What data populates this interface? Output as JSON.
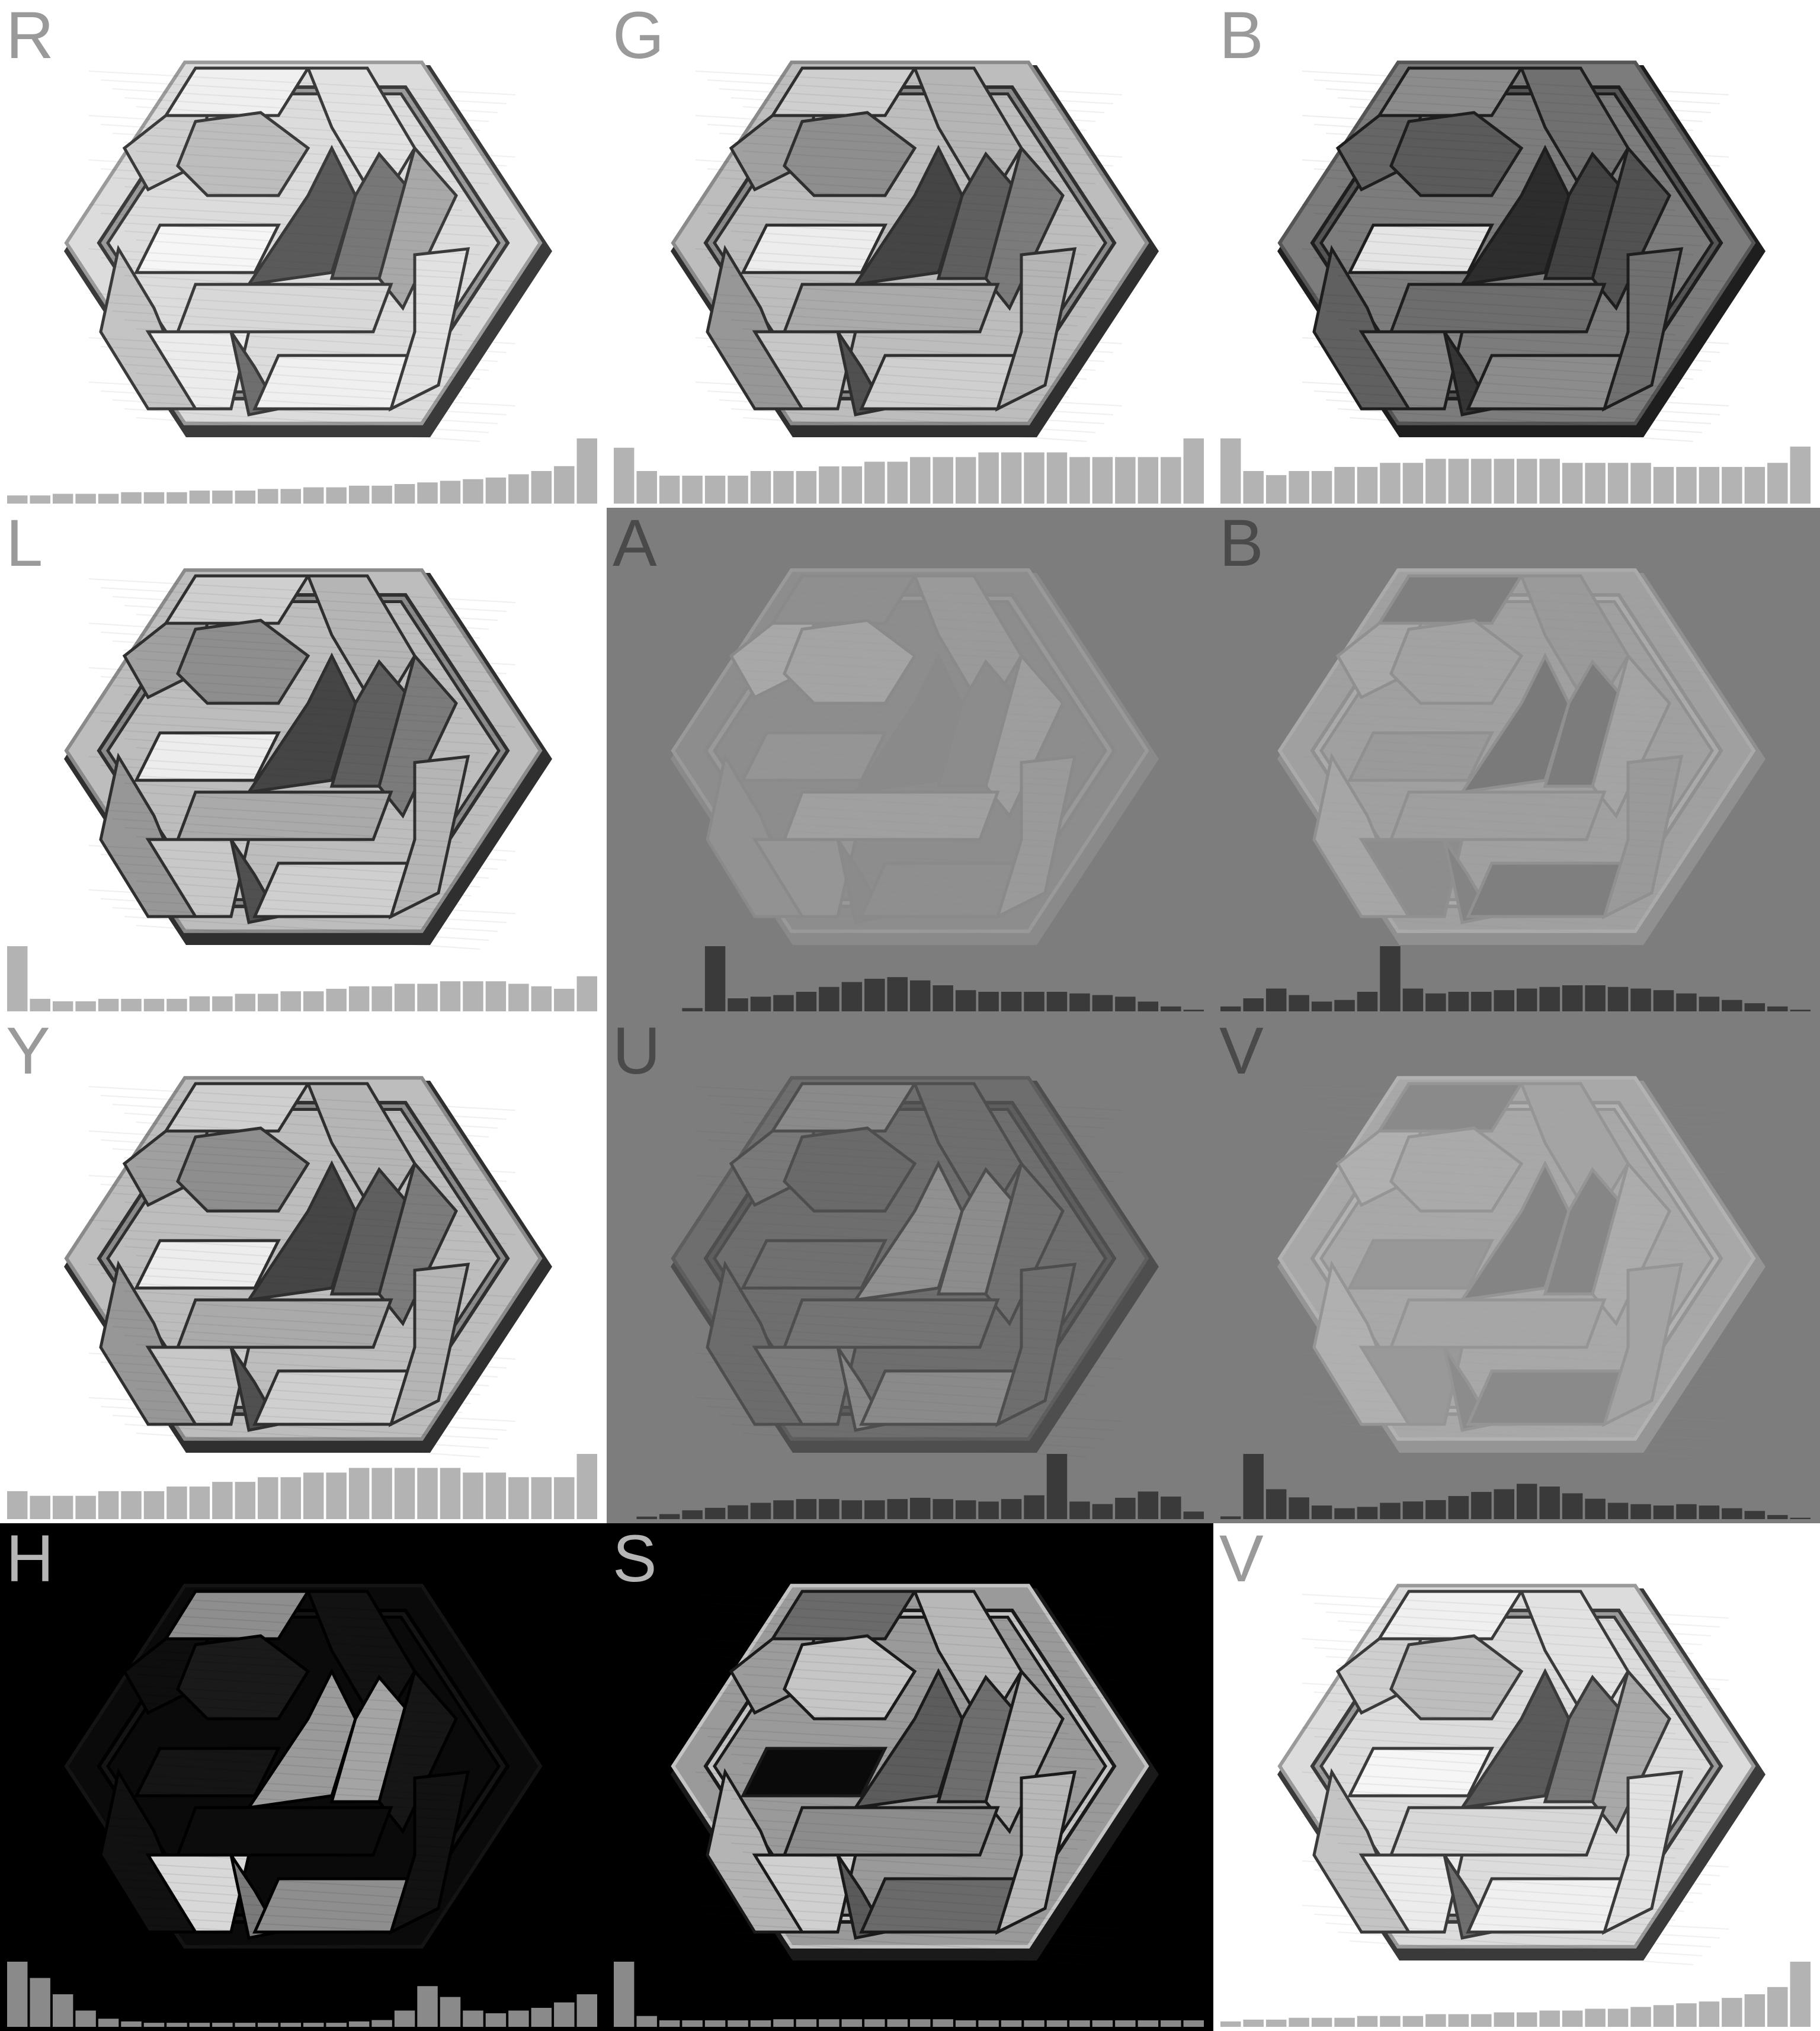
{
  "panels": [
    {
      "id": "R",
      "label": "R",
      "bg": "#ffffff",
      "labelColor": "#9a9a9a",
      "mode": "light",
      "hist": [
        5,
        5,
        6,
        6,
        6,
        7,
        7,
        7,
        8,
        8,
        8,
        9,
        9,
        10,
        10,
        11,
        11,
        12,
        13,
        14,
        15,
        16,
        18,
        20,
        23,
        40
      ]
    },
    {
      "id": "G",
      "label": "G",
      "bg": "#ffffff",
      "labelColor": "#9a9a9a",
      "mode": "mid",
      "hist": [
        12,
        7,
        6,
        6,
        6,
        6,
        7,
        7,
        7,
        8,
        8,
        9,
        9,
        10,
        10,
        10,
        11,
        11,
        11,
        11,
        10,
        10,
        10,
        10,
        10,
        14
      ]
    },
    {
      "id": "B",
      "label": "B",
      "bg": "#ffffff",
      "labelColor": "#9a9a9a",
      "mode": "dark",
      "hist": [
        16,
        8,
        7,
        8,
        8,
        9,
        9,
        10,
        10,
        11,
        11,
        11,
        11,
        11,
        11,
        10,
        10,
        10,
        10,
        9,
        9,
        9,
        9,
        9,
        10,
        14
      ]
    },
    {
      "id": "L",
      "label": "L",
      "bg": "#ffffff",
      "labelColor": "#9a9a9a",
      "mode": "mid",
      "hist": [
        26,
        5,
        4,
        4,
        5,
        5,
        5,
        5,
        6,
        6,
        7,
        7,
        8,
        8,
        9,
        10,
        10,
        11,
        11,
        12,
        12,
        12,
        11,
        10,
        9,
        14
      ]
    },
    {
      "id": "A",
      "label": "A",
      "bg": "#7d7d7d",
      "labelColor": "#4a4a4a",
      "mode": "flatA",
      "hist": [
        0,
        0,
        0,
        2,
        40,
        8,
        9,
        10,
        12,
        15,
        18,
        20,
        21,
        19,
        16,
        13,
        12,
        12,
        12,
        12,
        11,
        10,
        9,
        6,
        3,
        1
      ]
    },
    {
      "id": "B2",
      "label": "B",
      "bg": "#7d7d7d",
      "labelColor": "#4a4a4a",
      "mode": "flatB",
      "hist": [
        3,
        8,
        14,
        10,
        6,
        7,
        12,
        40,
        14,
        11,
        12,
        12,
        13,
        14,
        15,
        16,
        16,
        15,
        14,
        13,
        11,
        9,
        7,
        5,
        3,
        1
      ]
    },
    {
      "id": "Y",
      "label": "Y",
      "bg": "#ffffff",
      "labelColor": "#9a9a9a",
      "mode": "mid",
      "hist": [
        6,
        5,
        5,
        5,
        6,
        6,
        6,
        7,
        7,
        8,
        8,
        9,
        9,
        10,
        10,
        11,
        11,
        11,
        11,
        11,
        10,
        10,
        9,
        9,
        9,
        14
      ]
    },
    {
      "id": "U",
      "label": "U",
      "bg": "#7d7d7d",
      "labelColor": "#4a4a4a",
      "mode": "flatU",
      "hist": [
        0,
        2,
        4,
        7,
        9,
        11,
        13,
        15,
        16,
        16,
        15,
        15,
        16,
        17,
        16,
        15,
        14,
        16,
        19,
        52,
        14,
        12,
        17,
        22,
        18,
        6
      ]
    },
    {
      "id": "V",
      "label": "V",
      "bg": "#7d7d7d",
      "labelColor": "#4a4a4a",
      "mode": "flatV",
      "hist": [
        2,
        48,
        22,
        16,
        10,
        8,
        9,
        12,
        13,
        14,
        17,
        20,
        22,
        26,
        24,
        19,
        15,
        12,
        11,
        10,
        11,
        10,
        8,
        6,
        3,
        1
      ]
    },
    {
      "id": "H",
      "label": "H",
      "bg": "#000000",
      "labelColor": "#b5b5b5",
      "mode": "hue",
      "hist": [
        48,
        36,
        24,
        12,
        6,
        4,
        3,
        3,
        3,
        3,
        3,
        3,
        3,
        3,
        3,
        4,
        5,
        12,
        30,
        22,
        12,
        10,
        12,
        14,
        18,
        24
      ]
    },
    {
      "id": "S",
      "label": "S",
      "bg": "#000000",
      "labelColor": "#b5b5b5",
      "mode": "sat",
      "hist": [
        60,
        10,
        6,
        6,
        6,
        6,
        6,
        7,
        7,
        7,
        7,
        7,
        7,
        7,
        7,
        6,
        6,
        6,
        6,
        6,
        6,
        6,
        6,
        6,
        6,
        6
      ]
    },
    {
      "id": "V2",
      "label": "V",
      "bg": "#ffffff",
      "labelColor": "#9a9a9a",
      "mode": "light",
      "hist": [
        3,
        4,
        4,
        5,
        5,
        5,
        6,
        6,
        6,
        7,
        7,
        7,
        8,
        8,
        9,
        9,
        10,
        10,
        11,
        12,
        13,
        14,
        16,
        18,
        22,
        36
      ]
    }
  ]
}
